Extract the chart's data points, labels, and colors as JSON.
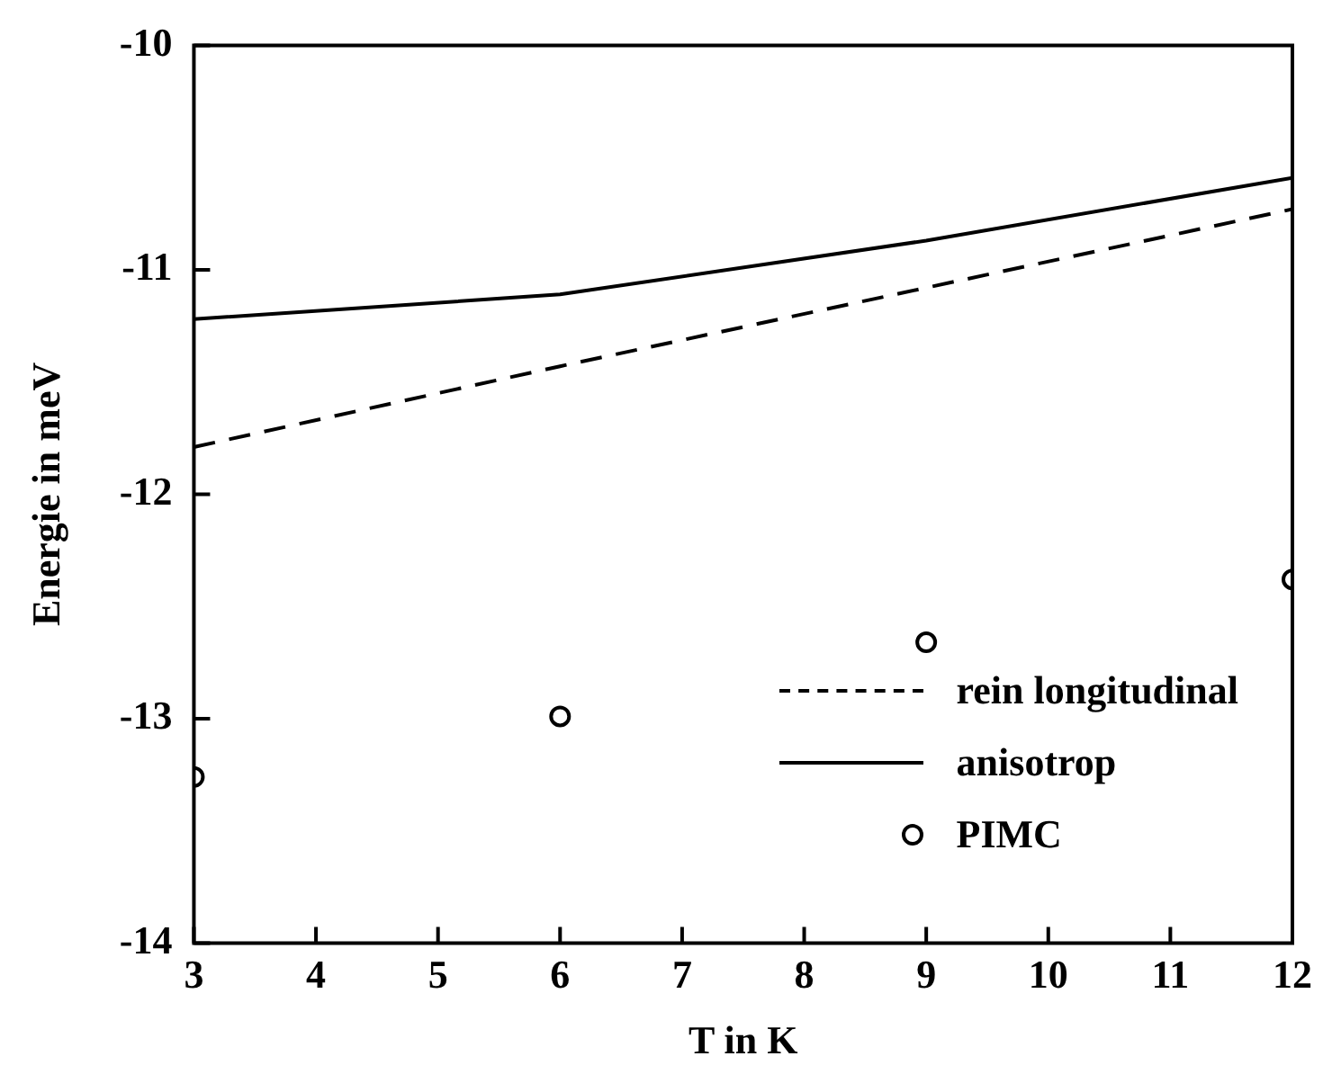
{
  "chart_data": {
    "type": "line",
    "xlabel": "T in K",
    "ylabel": "Energie in meV",
    "x": [
      3,
      6,
      9,
      12
    ],
    "xlim": [
      3,
      12
    ],
    "xticks": [
      3,
      4,
      5,
      6,
      7,
      8,
      9,
      10,
      11,
      12
    ],
    "ylim": [
      -14,
      -10
    ],
    "yticks": [
      -14,
      -13,
      -12,
      -11,
      -10
    ],
    "grid": false,
    "legend": "bottom right",
    "series": [
      {
        "name": "rein longitudinal",
        "color": "#000000",
        "line_style": "dashed",
        "marker": "none",
        "values": [
          -11.79,
          -11.43,
          -11.08,
          -10.73
        ]
      },
      {
        "name": "anisotrop",
        "color": "#000000",
        "line_style": "solid",
        "marker": "none",
        "values": [
          -11.22,
          -11.11,
          -10.87,
          -10.59
        ]
      },
      {
        "name": "PIMC",
        "type": "scatter",
        "color": "#000000",
        "marker": "circle",
        "values": [
          -13.26,
          -12.99,
          -12.66,
          -12.38
        ]
      }
    ]
  }
}
